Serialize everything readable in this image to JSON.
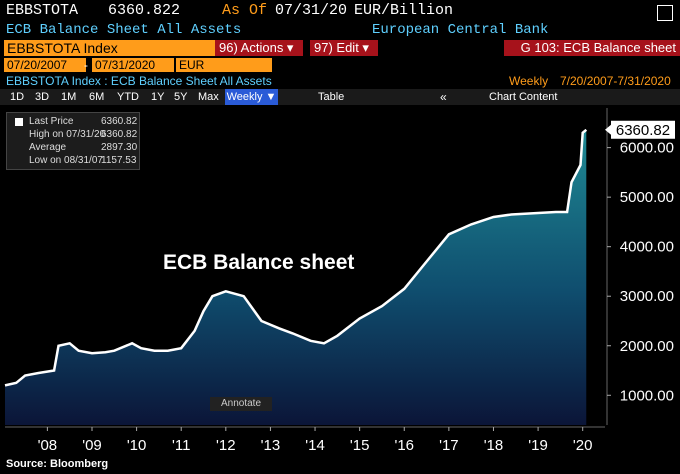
{
  "header": {
    "ticker": "EBBSTOTA",
    "price": "6360.822",
    "as_of_label": "As Of",
    "as_of": "07/31/20",
    "unit": "EUR/Billion",
    "description": "ECB Balance Sheet All Assets",
    "source_name": "European Central Bank"
  },
  "toolbar": {
    "security": "EBBSTOTA Index",
    "actions": "96) Actions ▾",
    "edit": "97) Edit ▾",
    "page": "G 103: ECB Balance sheet",
    "start_date": "07/20/2007",
    "end_date": "07/31/2020",
    "currency": "EUR",
    "chart_title": "EBBSTOTA Index : ECB Balance Sheet All Assets",
    "frequency": "Weekly",
    "range": "7/20/2007-7/31/2020",
    "periods": [
      "1D",
      "3D",
      "1M",
      "6M",
      "YTD",
      "1Y",
      "5Y",
      "Max"
    ],
    "frequency_button": "Weekly ▼",
    "table": "Table",
    "chart_content": "Chart Content"
  },
  "legend": {
    "rows": [
      [
        "Last Price",
        "6360.82"
      ],
      [
        "High on 07/31/20",
        "6360.82"
      ],
      [
        "Average",
        "2897.30"
      ],
      [
        "Low on 08/31/07",
        "1157.53"
      ]
    ]
  },
  "annotate": "Annotate",
  "footer": "Source: Bloomberg",
  "chart_data": {
    "type": "area",
    "annotation": "ECB Balance sheet",
    "last_value_label": "6360.82",
    "x": [
      2007.55,
      2007.8,
      2008.0,
      2008.3,
      2008.65,
      2008.75,
      2009.0,
      2009.2,
      2009.5,
      2009.8,
      2010.0,
      2010.4,
      2010.6,
      2010.9,
      2011.2,
      2011.5,
      2011.8,
      2012.0,
      2012.2,
      2012.5,
      2012.9,
      2013.3,
      2013.7,
      2014.0,
      2014.4,
      2014.7,
      2015.0,
      2015.5,
      2016.0,
      2016.5,
      2017.0,
      2017.5,
      2018.0,
      2018.5,
      2018.9,
      2019.5,
      2019.9,
      2020.15,
      2020.25,
      2020.45,
      2020.5,
      2020.58
    ],
    "series": [
      {
        "name": "Last Price",
        "color": "#ffffff",
        "values": [
          1200,
          1250,
          1400,
          1450,
          1500,
          2000,
          2050,
          1900,
          1850,
          1870,
          1900,
          2050,
          1950,
          1900,
          1900,
          1950,
          2300,
          2700,
          3000,
          3100,
          3000,
          2500,
          2350,
          2250,
          2100,
          2050,
          2200,
          2550,
          2800,
          3150,
          3700,
          4250,
          4450,
          4600,
          4650,
          4680,
          4700,
          4700,
          5300,
          5650,
          6300,
          6360.822
        ]
      }
    ],
    "xlim": [
      2007.55,
      2021.0
    ],
    "xticks": [
      {
        "value": 2008.5,
        "label": "'08"
      },
      {
        "value": 2009.5,
        "label": "'09"
      },
      {
        "value": 2010.5,
        "label": "'10"
      },
      {
        "value": 2011.5,
        "label": "'11"
      },
      {
        "value": 2012.5,
        "label": "'12"
      },
      {
        "value": 2013.5,
        "label": "'13"
      },
      {
        "value": 2014.5,
        "label": "'14"
      },
      {
        "value": 2015.5,
        "label": "'15"
      },
      {
        "value": 2016.5,
        "label": "'16"
      },
      {
        "value": 2017.5,
        "label": "'17"
      },
      {
        "value": 2018.5,
        "label": "'18"
      },
      {
        "value": 2019.5,
        "label": "'19"
      },
      {
        "value": 2020.5,
        "label": "'20"
      }
    ],
    "ylim": [
      400,
      6800
    ],
    "yticks": [
      {
        "value": 1000,
        "label": "1000.00"
      },
      {
        "value": 2000,
        "label": "2000.00"
      },
      {
        "value": 3000,
        "label": "3000.00"
      },
      {
        "value": 4000,
        "label": "4000.00"
      },
      {
        "value": 5000,
        "label": "5000.00"
      },
      {
        "value": 6000,
        "label": "6000.00"
      }
    ]
  }
}
